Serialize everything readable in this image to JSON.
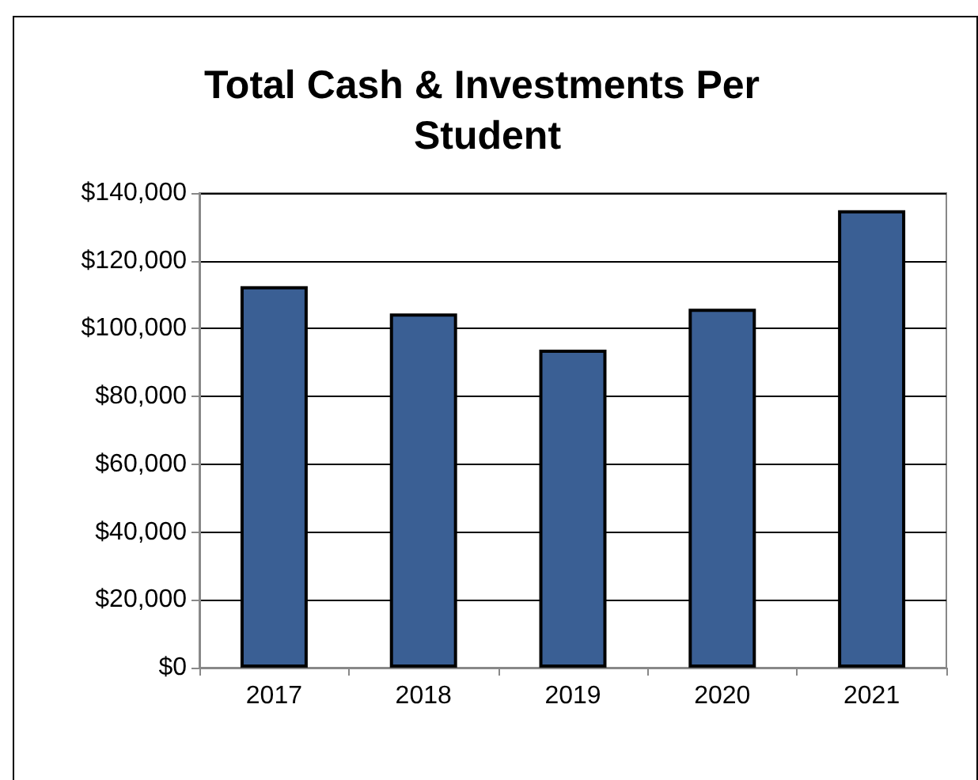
{
  "chart_data": {
    "type": "bar",
    "title": "Total Cash & Investments Per Student",
    "categories": [
      "2017",
      "2018",
      "2019",
      "2020",
      "2021"
    ],
    "values": [
      112500,
      104500,
      93800,
      105900,
      134900
    ],
    "color": "#3a5f94",
    "ylim": [
      0,
      140000
    ],
    "yticks": [
      {
        "value": 0,
        "label": "$0"
      },
      {
        "value": 20000,
        "label": "$20,000"
      },
      {
        "value": 40000,
        "label": "$40,000"
      },
      {
        "value": 60000,
        "label": "$60,000"
      },
      {
        "value": 80000,
        "label": "$80,000"
      },
      {
        "value": 100000,
        "label": "$100,000"
      },
      {
        "value": 120000,
        "label": "$120,000"
      },
      {
        "value": 140000,
        "label": "$140,000"
      }
    ],
    "grid": "y"
  }
}
